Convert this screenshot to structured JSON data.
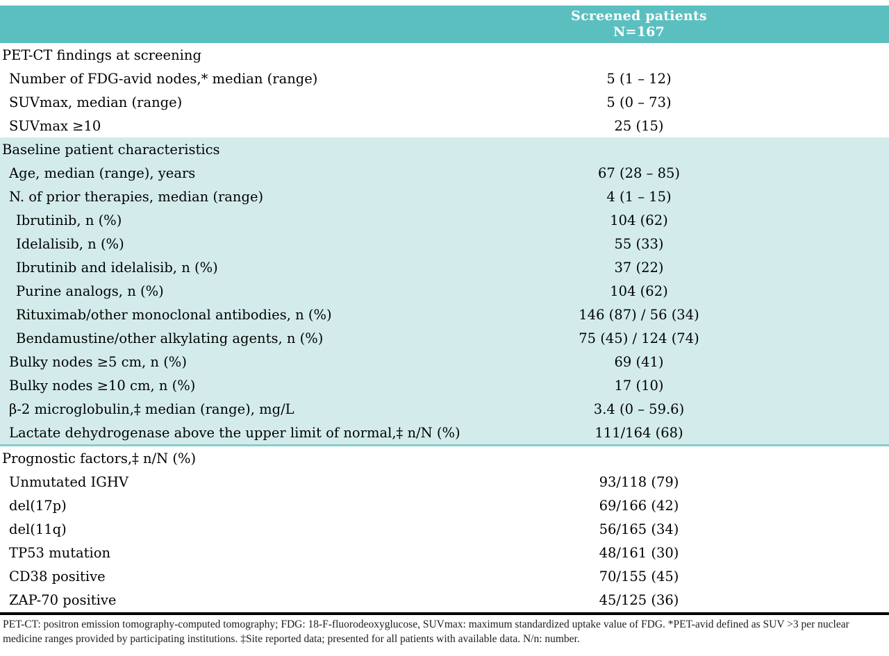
{
  "header": {
    "line1": "Screened patients",
    "line2": "N=167"
  },
  "colors": {
    "header_bg": "#5bbfc0",
    "shaded_section_bg": "#d3eceb",
    "shaded_section_border": "#84cecd",
    "header_text": "#ffffff",
    "divider": "#000000"
  },
  "sections": [
    {
      "title": "PET-CT findings at screening",
      "shaded": false,
      "rows": [
        {
          "label": "Number of FDG-avid nodes,* median (range)",
          "value": "5 (1 – 12)"
        },
        {
          "label": "SUVmax, median (range)",
          "value": "5 (0 – 73)"
        },
        {
          "label": "SUVmax ≥10",
          "value": "25 (15)"
        }
      ]
    },
    {
      "title": "Baseline patient characteristics",
      "shaded": true,
      "rows": [
        {
          "label": "Age, median (range), years",
          "value": "67 (28 – 85)"
        },
        {
          "label": "N. of prior therapies, median (range)",
          "value": "4 (1 – 15)"
        },
        {
          "label": "Ibrutinib, n (%)",
          "value": "104 (62)"
        },
        {
          "label": "Idelalisib, n (%)",
          "value": "55 (33)"
        },
        {
          "label": "Ibrutinib and idelalisib, n (%)",
          "value": "37 (22)"
        },
        {
          "label": "Purine analogs, n (%)",
          "value": "104 (62)"
        },
        {
          "label": "Rituximab/other monoclonal antibodies, n (%)",
          "value": "146 (87) / 56 (34)"
        },
        {
          "label": "Bendamustine/other alkylating agents, n (%)",
          "value": "75 (45) / 124 (74)"
        },
        {
          "label": "Bulky nodes ≥5 cm, n (%)",
          "value": "69 (41)"
        },
        {
          "label": "Bulky nodes ≥10 cm, n (%)",
          "value": "17 (10)"
        },
        {
          "label": "β-2 microglobulin,‡ median (range), mg/L",
          "value": "3.4 (0 – 59.6)"
        },
        {
          "label": "Lactate dehydrogenase above the upper limit of normal,‡ n/N (%)",
          "value": "111/164 (68)"
        }
      ]
    },
    {
      "title": "Prognostic factors,‡ n/N (%)",
      "shaded": false,
      "rows": [
        {
          "label": "Unmutated IGHV",
          "value": "93/118 (79)"
        },
        {
          "label": "del(17p)",
          "value": "69/166 (42)"
        },
        {
          "label": "del(11q)",
          "value": "56/165 (34)"
        },
        {
          "label": "TP53 mutation",
          "value": "48/161 (30)"
        },
        {
          "label": "CD38 positive",
          "value": "70/155 (45)"
        },
        {
          "label": "ZAP-70 positive",
          "value": "45/125 (36)"
        }
      ]
    }
  ],
  "footnote": {
    "text": "PET-CT: positron emission tomography-computed tomography; FDG: 18-F-fluorodeoxyglucose, SUVmax: maximum standardized uptake value of FDG. *PET-avid defined as SUV >3 per nuclear medicine ranges provided by participating institutions. ‡Site reported data; presented for all patients with available data. N/n: number."
  }
}
